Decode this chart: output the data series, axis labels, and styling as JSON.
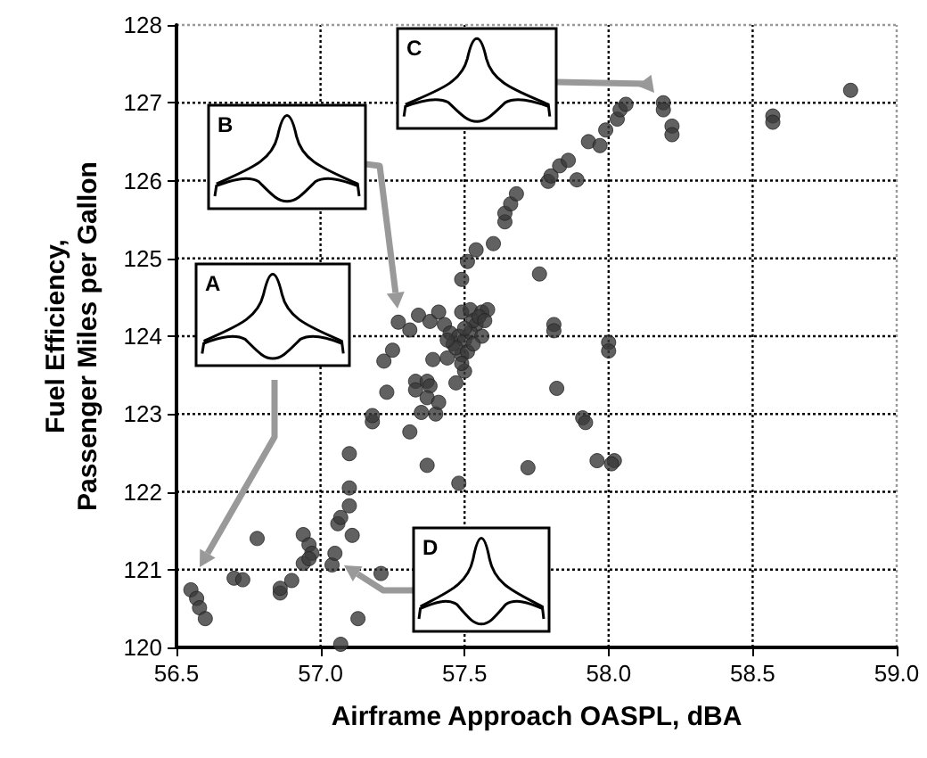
{
  "chart_data": {
    "type": "scatter",
    "xlabel": "Airframe Approach OASPL, dBA",
    "ylabel": "Fuel Efficiency,\nPassenger Miles per Gallon",
    "xlim": [
      56.5,
      59.0
    ],
    "xticks": [
      {
        "value": 56.5,
        "label": "56.5"
      },
      {
        "value": 57.0,
        "label": "57.0"
      },
      {
        "value": 57.5,
        "label": "57.5"
      },
      {
        "value": 58.0,
        "label": "58.0"
      },
      {
        "value": 58.5,
        "label": "58.5"
      },
      {
        "value": 59.0,
        "label": "59.0"
      }
    ],
    "ylim": [
      120,
      128
    ],
    "yticks": [
      120,
      121,
      122,
      123,
      124,
      125,
      126,
      127,
      128
    ],
    "grid": true,
    "marker": "circle",
    "annotations": [
      "A",
      "B",
      "C",
      "D"
    ],
    "series": [
      {
        "color": "#3a3a3a",
        "x": [
          56.55,
          56.57,
          56.58,
          56.6,
          56.7,
          56.73,
          56.78,
          56.86,
          56.86,
          56.9,
          56.94,
          56.96,
          56.97,
          56.94,
          56.96,
          57.04,
          57.05,
          57.07,
          57.06,
          57.07,
          57.1,
          57.1,
          57.1,
          57.11,
          57.13,
          57.21,
          57.18,
          57.18,
          57.23,
          57.22,
          57.25,
          57.31,
          57.33,
          57.33,
          57.35,
          57.37,
          57.39,
          57.37,
          57.38,
          57.37,
          57.4,
          57.41,
          57.44,
          57.47,
          57.48,
          57.5,
          57.49,
          57.72,
          57.27,
          57.31,
          57.34,
          57.38,
          57.41,
          57.43,
          57.45,
          57.49,
          57.52,
          57.54,
          57.56,
          57.58,
          57.49,
          57.51,
          57.54,
          57.6,
          57.64,
          57.64,
          57.66,
          57.68,
          57.76,
          57.79,
          57.8,
          57.83,
          57.86,
          57.89,
          57.93,
          57.97,
          57.99,
          58.03,
          58.04,
          58.06,
          58.19,
          58.19,
          58.22,
          58.22,
          58.57,
          58.57,
          58.84,
          57.81,
          57.81,
          58.0,
          58.0,
          57.82,
          57.91,
          57.92,
          57.96,
          58.02,
          58.01,
          57.46,
          57.48,
          57.5,
          57.52,
          57.53,
          57.55,
          57.47,
          57.5,
          57.44,
          57.56,
          57.51,
          57.49,
          57.53,
          57.57
        ],
        "values": [
          120.74,
          120.63,
          120.51,
          120.37,
          120.89,
          120.87,
          121.4,
          120.7,
          120.76,
          120.86,
          121.45,
          121.32,
          121.21,
          121.08,
          121.14,
          121.06,
          121.21,
          120.04,
          121.59,
          121.67,
          121.82,
          122.05,
          122.49,
          121.44,
          120.37,
          120.95,
          122.9,
          122.98,
          123.28,
          123.68,
          123.82,
          122.77,
          123.42,
          123.31,
          123.02,
          122.34,
          123.7,
          123.42,
          123.36,
          123.21,
          123.0,
          123.15,
          123.72,
          123.4,
          122.11,
          123.55,
          123.76,
          122.31,
          124.18,
          124.08,
          124.27,
          124.19,
          124.31,
          124.15,
          124.04,
          124.31,
          124.34,
          124.15,
          124.31,
          124.34,
          124.73,
          124.96,
          125.11,
          125.19,
          125.47,
          125.58,
          125.7,
          125.83,
          124.8,
          125.99,
          126.06,
          126.19,
          126.26,
          126.01,
          126.5,
          126.45,
          126.65,
          126.79,
          126.91,
          126.98,
          127.0,
          126.91,
          126.7,
          126.59,
          126.83,
          126.75,
          127.16,
          124.15,
          124.07,
          123.92,
          123.81,
          123.33,
          122.95,
          122.89,
          122.4,
          122.4,
          122.36,
          123.9,
          124.0,
          123.95,
          124.05,
          124.2,
          124.25,
          123.85,
          124.1,
          123.95,
          124.0,
          123.8,
          123.65,
          123.9,
          124.2
        ]
      }
    ]
  }
}
